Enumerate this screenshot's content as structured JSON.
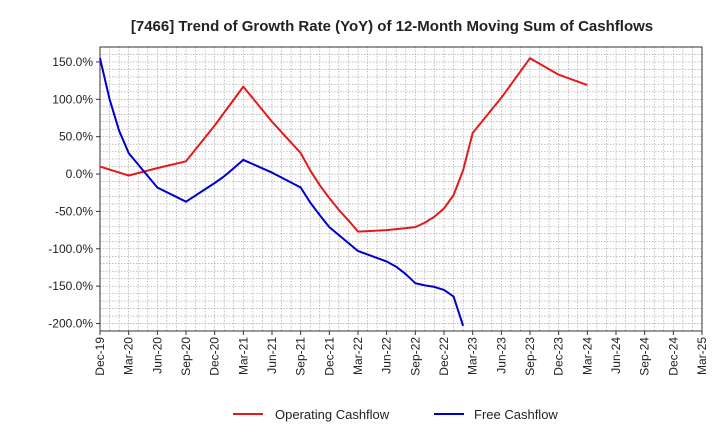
{
  "chart_data": {
    "type": "line",
    "title": "[7466]  Trend of Growth Rate (YoY) of 12-Month Moving Sum of Cashflows",
    "xlabel": "",
    "ylabel": "",
    "ylim": [
      -210,
      170
    ],
    "yticks": [
      150,
      100,
      50,
      0,
      -50,
      -100,
      -150,
      -200
    ],
    "ytick_labels": [
      "150.0%",
      "100.0%",
      "50.0%",
      "0.0%",
      "-50.0%",
      "-100.0%",
      "-150.0%",
      "-200.0%"
    ],
    "x_range": [
      "2019-12",
      "2025-03"
    ],
    "xtick_labels": [
      "Dec-19",
      "Mar-20",
      "Jun-20",
      "Sep-20",
      "Dec-20",
      "Mar-21",
      "Jun-21",
      "Sep-21",
      "Dec-21",
      "Mar-22",
      "Jun-22",
      "Sep-22",
      "Dec-22",
      "Mar-23",
      "Jun-23",
      "Sep-23",
      "Dec-23",
      "Mar-24",
      "Jun-24",
      "Sep-24",
      "Dec-24",
      "Mar-25"
    ],
    "grid": true,
    "legend_position": "bottom",
    "series": [
      {
        "name": "Operating Cashflow",
        "color": "#e31a1c",
        "points": [
          [
            "2019-12",
            10
          ],
          [
            "2020-03",
            -2
          ],
          [
            "2020-06",
            8
          ],
          [
            "2020-09",
            17
          ],
          [
            "2020-12",
            65
          ],
          [
            "2021-03",
            117
          ],
          [
            "2021-06",
            70
          ],
          [
            "2021-09",
            28
          ],
          [
            "2021-10",
            5
          ],
          [
            "2021-11",
            -15
          ],
          [
            "2021-12",
            -32
          ],
          [
            "2022-01",
            -48
          ],
          [
            "2022-02",
            -62
          ],
          [
            "2022-03",
            -77
          ],
          [
            "2022-06",
            -75
          ],
          [
            "2022-09",
            -71
          ],
          [
            "2022-10",
            -65
          ],
          [
            "2022-11",
            -57
          ],
          [
            "2022-12",
            -46
          ],
          [
            "2023-01",
            -28
          ],
          [
            "2023-02",
            5
          ],
          [
            "2023-03",
            55
          ],
          [
            "2023-06",
            102
          ],
          [
            "2023-09",
            155
          ],
          [
            "2023-12",
            133
          ],
          [
            "2024-03",
            119
          ]
        ]
      },
      {
        "name": "Free Cashflow",
        "color": "#0000cc",
        "points": [
          [
            "2019-12",
            155
          ],
          [
            "2020-01",
            100
          ],
          [
            "2020-02",
            58
          ],
          [
            "2020-03",
            28
          ],
          [
            "2020-06",
            -18
          ],
          [
            "2020-09",
            -37
          ],
          [
            "2020-12",
            -12
          ],
          [
            "2021-01",
            -3
          ],
          [
            "2021-02",
            8
          ],
          [
            "2021-03",
            19
          ],
          [
            "2021-06",
            2
          ],
          [
            "2021-09",
            -18
          ],
          [
            "2021-10",
            -38
          ],
          [
            "2021-11",
            -55
          ],
          [
            "2021-12",
            -71
          ],
          [
            "2022-03",
            -103
          ],
          [
            "2022-06",
            -117
          ],
          [
            "2022-07",
            -124
          ],
          [
            "2022-08",
            -134
          ],
          [
            "2022-09",
            -146
          ],
          [
            "2022-10",
            -149
          ],
          [
            "2022-11",
            -151
          ],
          [
            "2022-12",
            -155
          ],
          [
            "2023-01",
            -164
          ],
          [
            "2023-02",
            -203
          ]
        ]
      }
    ]
  }
}
